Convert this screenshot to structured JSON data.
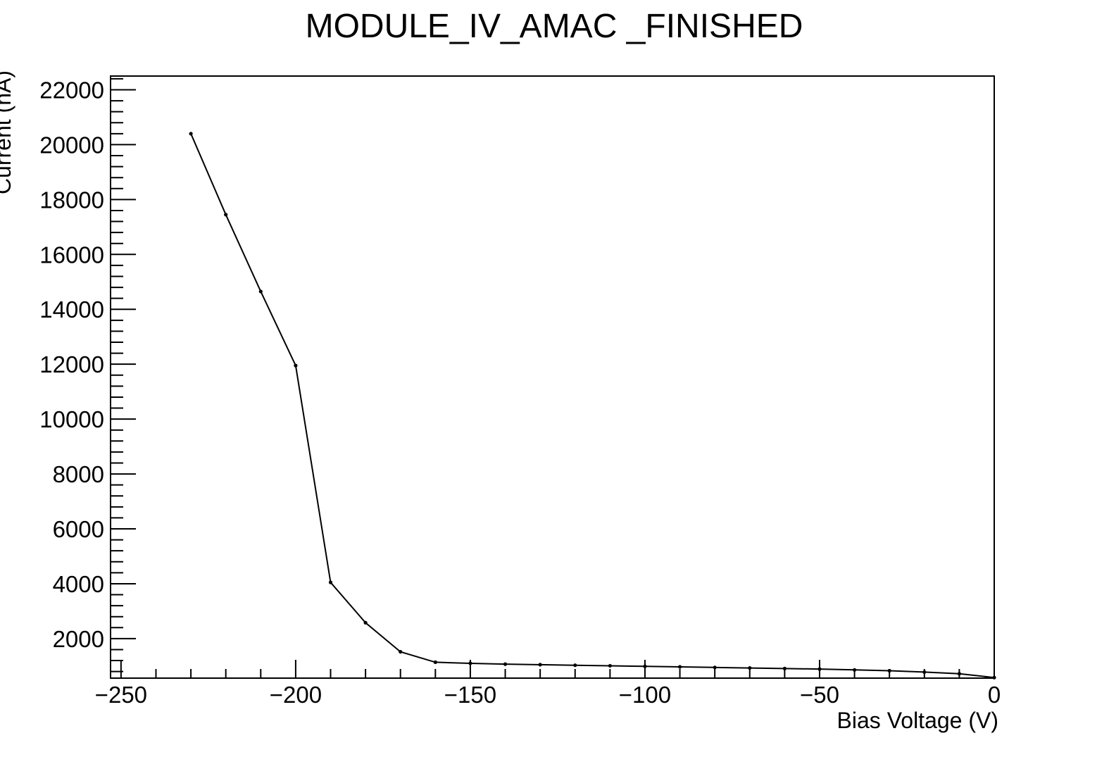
{
  "chart_data": {
    "type": "line",
    "title": "MODULE_IV_AMAC _FINISHED",
    "xlabel": "Bias Voltage (V)",
    "ylabel": "Current (nA)",
    "xlim": [
      -253,
      0
    ],
    "ylim": [
      560,
      22500
    ],
    "x_ticks": [
      -250,
      -200,
      -150,
      -100,
      -50,
      0
    ],
    "x_tick_labels": [
      "−250",
      "−200",
      "−150",
      "−100",
      "−50",
      "0"
    ],
    "x_minor_step": 10,
    "y_ticks": [
      2000,
      4000,
      6000,
      8000,
      10000,
      12000,
      14000,
      16000,
      18000,
      20000,
      22000
    ],
    "y_tick_labels": [
      "2000",
      "4000",
      "6000",
      "8000",
      "10000",
      "12000",
      "14000",
      "16000",
      "18000",
      "20000",
      "22000"
    ],
    "y_minor_step": 400,
    "grid": false,
    "series": [
      {
        "color": "#000000",
        "x": [
          -230,
          -220,
          -210,
          -200,
          -190,
          -180,
          -170,
          -160,
          -150,
          -140,
          -130,
          -120,
          -110,
          -100,
          -90,
          -80,
          -70,
          -60,
          -50,
          -40,
          -30,
          -20,
          -10,
          0
        ],
        "y": [
          20400,
          17450,
          14650,
          11950,
          4050,
          2580,
          1520,
          1140,
          1100,
          1070,
          1050,
          1030,
          1010,
          990,
          970,
          950,
          930,
          910,
          890,
          860,
          830,
          780,
          720,
          580
        ]
      }
    ]
  }
}
